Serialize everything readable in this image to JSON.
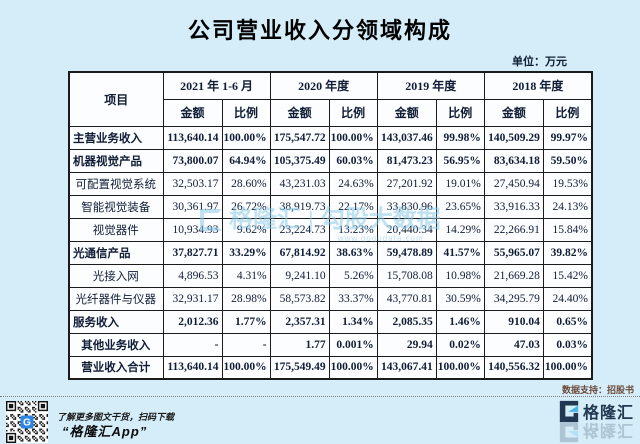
{
  "title": "公司营业收入分领域构成",
  "unit_label": "单位：万元",
  "colors": {
    "bg": "#d4edf8",
    "border": "#1b1b1b",
    "text": "#101d36",
    "wm": "#8ecbe8",
    "support": "#6d4a3c",
    "navy": "#223852",
    "blue": "#49b6e8"
  },
  "chart_data": {
    "type": "table",
    "title": "公司营业收入分领域构成",
    "unit": "万元",
    "item_header": "项目",
    "column_groups": [
      "2021 年 1-6 月",
      "2020 年度",
      "2019 年度",
      "2018 年度"
    ],
    "sub_columns": [
      "金额",
      "比例"
    ],
    "rows": [
      {
        "label": "主营业务收入",
        "bold": true,
        "align": "left",
        "values": [
          "113,640.14",
          "100.00%",
          "175,547.72",
          "100.00%",
          "143,037.46",
          "99.98%",
          "140,509.29",
          "99.97%"
        ]
      },
      {
        "label": "机器视觉产品",
        "bold": true,
        "align": "left",
        "values": [
          "73,800.07",
          "64.94%",
          "105,375.49",
          "60.03%",
          "81,473.23",
          "56.95%",
          "83,634.18",
          "59.50%"
        ]
      },
      {
        "label": "可配置视觉系统",
        "bold": false,
        "align": "center",
        "values": [
          "32,503.17",
          "28.60%",
          "43,231.03",
          "24.63%",
          "27,201.92",
          "19.01%",
          "27,450.94",
          "19.53%"
        ]
      },
      {
        "label": "智能视觉装备",
        "bold": false,
        "align": "center",
        "values": [
          "30,361.97",
          "26.72%",
          "38,919.73",
          "22.17%",
          "33,830.96",
          "23.65%",
          "33,916.33",
          "24.13%"
        ]
      },
      {
        "label": "视觉器件",
        "bold": false,
        "align": "center",
        "values": [
          "10,934.93",
          "9.62%",
          "23,224.73",
          "13.23%",
          "20,440.34",
          "14.29%",
          "22,266.91",
          "15.84%"
        ]
      },
      {
        "label": "光通信产品",
        "bold": true,
        "align": "left",
        "values": [
          "37,827.71",
          "33.29%",
          "67,814.92",
          "38.63%",
          "59,478.89",
          "41.57%",
          "55,965.07",
          "39.82%"
        ]
      },
      {
        "label": "光接入网",
        "bold": false,
        "align": "center",
        "values": [
          "4,896.53",
          "4.31%",
          "9,241.10",
          "5.26%",
          "15,708.08",
          "10.98%",
          "21,669.28",
          "15.42%"
        ]
      },
      {
        "label": "光纤器件与仪器",
        "bold": false,
        "align": "center",
        "values": [
          "32,931.17",
          "28.98%",
          "58,573.82",
          "33.37%",
          "43,770.81",
          "30.59%",
          "34,295.79",
          "24.40%"
        ]
      },
      {
        "label": "服务收入",
        "bold": true,
        "align": "left",
        "values": [
          "2,012.36",
          "1.77%",
          "2,357.31",
          "1.34%",
          "2,085.35",
          "1.46%",
          "910.04",
          "0.65%"
        ]
      },
      {
        "label": "其他业务收入",
        "bold": true,
        "align": "center",
        "values": [
          "-",
          "-",
          "1.77",
          "0.001%",
          "29.94",
          "0.02%",
          "47.03",
          "0.03%"
        ]
      },
      {
        "label": "营业收入合计",
        "bold": true,
        "align": "center",
        "values": [
          "113,640.14",
          "100.00%",
          "175,549.49",
          "100.00%",
          "143,067.41",
          "100.00%",
          "140,556.32",
          "100.00%"
        ]
      }
    ]
  },
  "watermark": {
    "brand": "格隆汇",
    "sep": "|",
    "name": "勾股大数据",
    "url": "www.gogudata.com"
  },
  "footer": {
    "data_support": "数据支持：招股书",
    "qr_caption": "了解更多图文干货，扫码下载",
    "app_name": "“格隆汇App”",
    "brand_name": "格隆汇"
  }
}
